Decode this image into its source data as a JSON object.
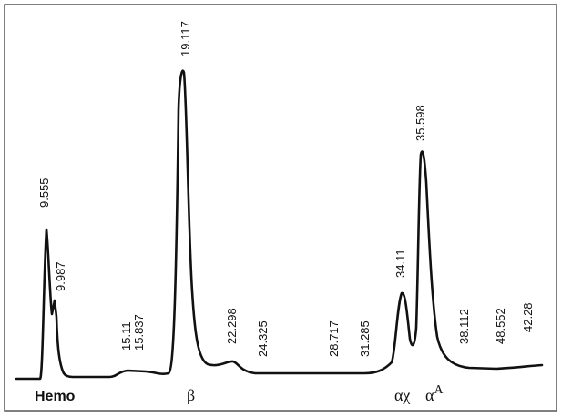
{
  "chart_data": {
    "type": "chromatogram",
    "peak_labels": [
      "9.555",
      "9.987",
      "15.11",
      "15.837",
      "19.117",
      "22.298",
      "24.325",
      "28.717",
      "31.285",
      "34.11",
      "35.598",
      "38.112",
      "48.552",
      "42.28"
    ],
    "components": [
      {
        "label": "Hemo"
      },
      {
        "label": "β"
      },
      {
        "label": "αχ"
      },
      {
        "label": "α",
        "sup": "A"
      }
    ],
    "color": "#111111"
  }
}
